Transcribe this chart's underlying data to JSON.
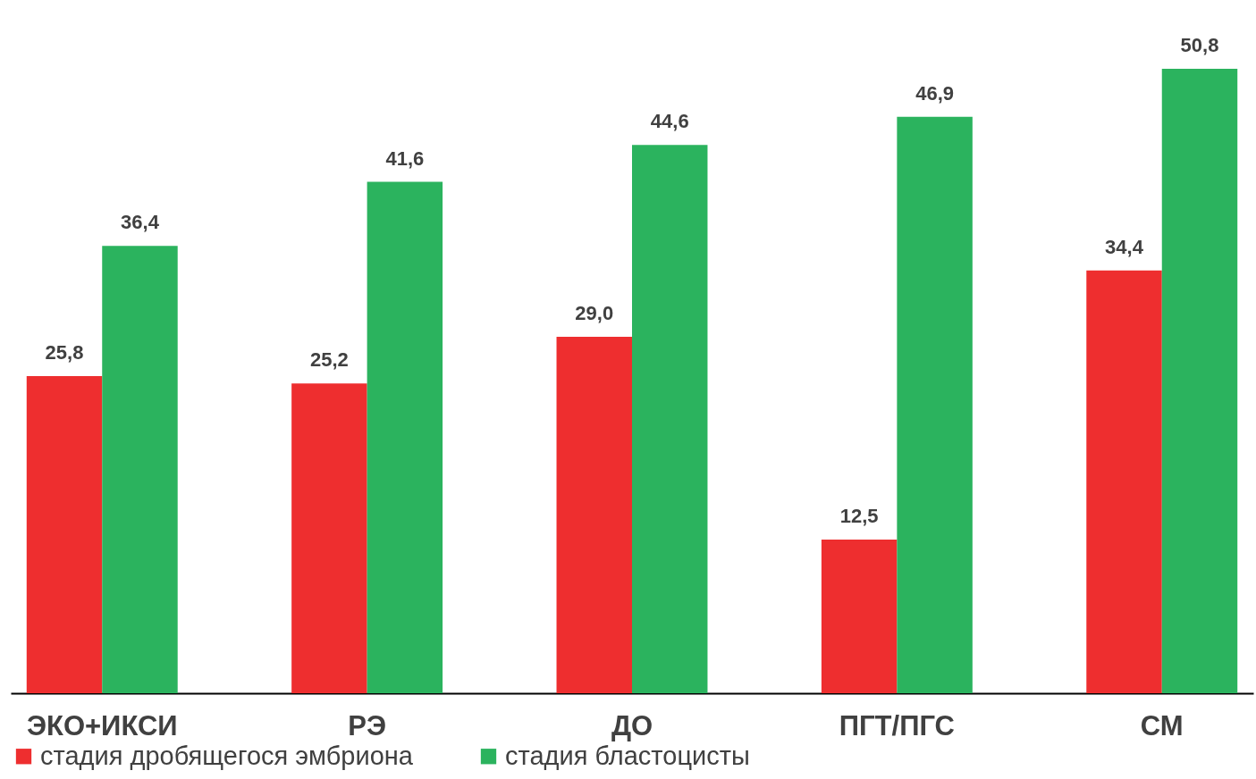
{
  "chart_data": {
    "type": "bar",
    "categories": [
      "ЭКО+ИКСИ",
      "РЭ",
      "ДО",
      "ПГТ/ПГС",
      "СМ"
    ],
    "series": [
      {
        "name": "стадия дробящегося эмбриона",
        "color": "#ee2e2f",
        "values": [
          25.8,
          25.2,
          29.0,
          12.5,
          34.4
        ],
        "value_labels": [
          "25,8",
          "25,2",
          "29,0",
          "12,5",
          "34,4"
        ]
      },
      {
        "name": "стадия бластоцисты",
        "color": "#2bb35e",
        "values": [
          36.4,
          41.6,
          44.6,
          46.9,
          50.8
        ],
        "value_labels": [
          "36,4",
          "41,6",
          "44,6",
          "46,9",
          "50,8"
        ]
      }
    ],
    "legend": "bottom",
    "grid": false
  }
}
